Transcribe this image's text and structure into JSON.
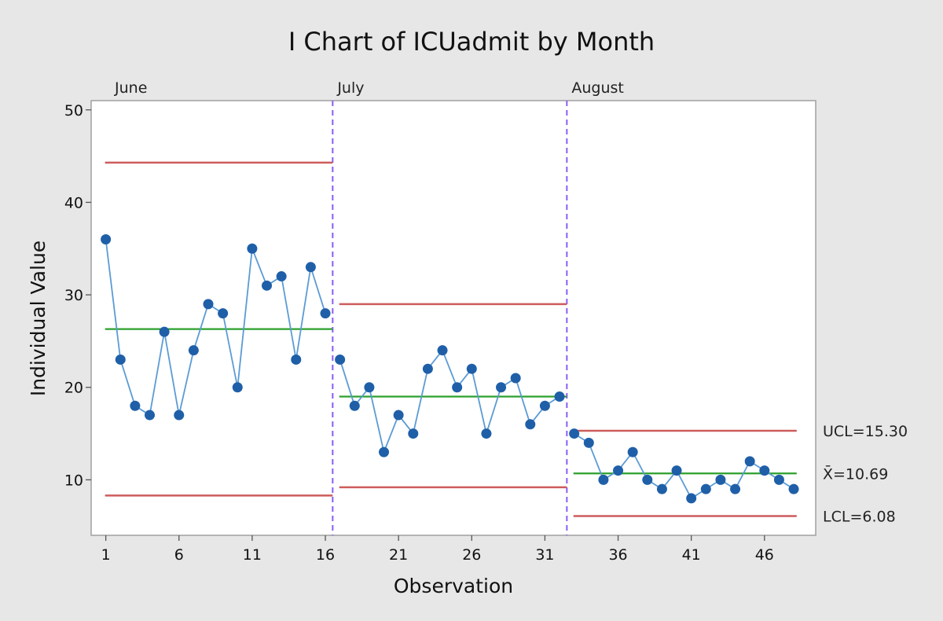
{
  "chart_data": {
    "type": "line",
    "title": "I Chart of ICUadmit by Month",
    "xlabel": "Observation",
    "ylabel": "Individual Value",
    "xlim": [
      0,
      49.5
    ],
    "ylim": [
      4,
      51
    ],
    "x_ticks": [
      1,
      6,
      11,
      16,
      21,
      26,
      31,
      36,
      41,
      46
    ],
    "y_ticks": [
      10,
      20,
      30,
      40,
      50
    ],
    "grid": false,
    "series": [
      {
        "color": "#5b9bd5",
        "marker_color": "#1f5fa8",
        "x": [
          1,
          2,
          3,
          4,
          5,
          6,
          7,
          8,
          9,
          10,
          11,
          12,
          13,
          14,
          15,
          16,
          17,
          18,
          19,
          20,
          21,
          22,
          23,
          24,
          25,
          26,
          27,
          28,
          29,
          30,
          31,
          32,
          33,
          34,
          35,
          36,
          37,
          38,
          39,
          40,
          41,
          42,
          43,
          44,
          45,
          46,
          47,
          48
        ],
        "values": [
          36,
          23,
          18,
          17,
          26,
          17,
          24,
          29,
          28,
          20,
          35,
          31,
          32,
          23,
          33,
          28,
          23,
          18,
          20,
          13,
          17,
          15,
          22,
          24,
          20,
          22,
          15,
          20,
          21,
          16,
          18,
          19,
          15,
          14,
          10,
          11,
          13,
          10,
          9,
          11,
          8,
          9,
          10,
          9,
          12,
          11,
          10,
          9
        ]
      }
    ],
    "phases": [
      {
        "name": "June",
        "start": 1,
        "end": 16,
        "ucl": 44.3,
        "center": 26.3,
        "lcl": 8.3
      },
      {
        "name": "July",
        "start": 17,
        "end": 32,
        "ucl": 29.0,
        "center": 19.0,
        "lcl": 9.2
      },
      {
        "name": "August",
        "start": 33,
        "end": 48,
        "ucl": 15.3,
        "center": 10.69,
        "lcl": 6.08
      }
    ],
    "phase_boundaries": [
      16.5,
      32.5
    ],
    "reference_labels": {
      "ucl": "UCL=15.30",
      "center": "X̄=10.69",
      "lcl": "LCL=6.08"
    },
    "colors": {
      "limit_line": "#cd5c5c",
      "center_line": "#2ca02c",
      "phase_divider": "#8a5cf6"
    }
  }
}
